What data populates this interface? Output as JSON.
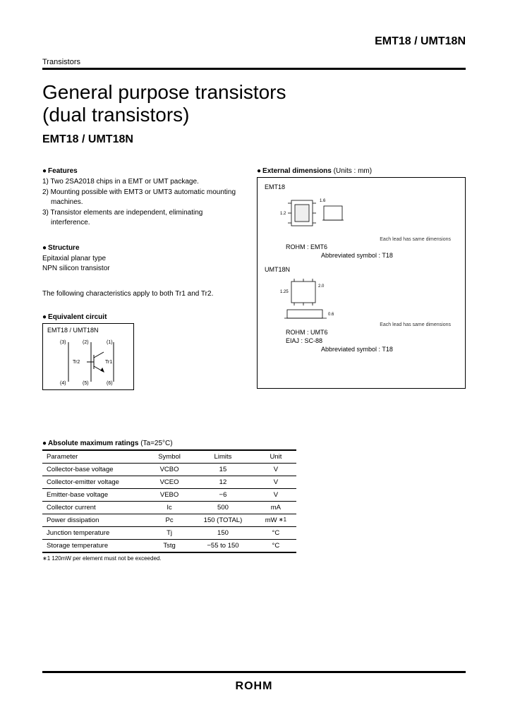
{
  "header": {
    "partno": "EMT18 / UMT18N",
    "category": "Transistors"
  },
  "title_l1": "General purpose transistors",
  "title_l2": "(dual transistors)",
  "subpart": "EMT18 / UMT18N",
  "features": {
    "heading": "Features",
    "items": [
      "1) Two 2SA2018 chips in a EMT or UMT package.",
      "2) Mounting possible with EMT3 or UMT3 automatic mounting machines.",
      "3) Transistor elements are independent, eliminating interference."
    ]
  },
  "structure": {
    "heading": "Structure",
    "l1": "Epitaxial planar type",
    "l2": "NPN silicon transistor"
  },
  "note": "The following characteristics apply to both Tr1 and Tr2.",
  "equiv": {
    "heading": "Equivalent circuit",
    "label": "EMT18 / UMT18N",
    "pins": {
      "top_l": "(3)",
      "top_m": "(2)",
      "top_r": "(1)",
      "bot_l": "(4)",
      "bot_m": "(5)",
      "bot_r": "(6)"
    },
    "tr1": "Tr1",
    "tr2": "Tr2"
  },
  "extdim": {
    "heading": "External dimensions",
    "units": "(Units : mm)",
    "pkg1": {
      "name": "EMT18",
      "rohm": "ROHM   : EMT6",
      "abbr": "Abbreviated symbol : T18",
      "note": "Each lead has same dimensions"
    },
    "pkg2": {
      "name": "UMT18N",
      "rohm": "ROHM   : UMT6",
      "eiaj": "EIAJ   : SC-88",
      "abbr": "Abbreviated symbol : T18",
      "note": "Each lead has same dimensions"
    }
  },
  "ratings": {
    "heading": "Absolute maximum ratings",
    "cond": "(Ta=25°C)",
    "cols": [
      "Parameter",
      "Symbol",
      "Limits",
      "Unit"
    ],
    "rows": [
      [
        "Collector-base voltage",
        "VCBO",
        "15",
        "V"
      ],
      [
        "Collector-emitter voltage",
        "VCEO",
        "12",
        "V"
      ],
      [
        "Emitter-base voltage",
        "VEBO",
        "−6",
        "V"
      ],
      [
        "Collector current",
        "Ic",
        "500",
        "mA"
      ],
      [
        "Power dissipation",
        "Pc",
        "150 (TOTAL)",
        "mW"
      ],
      [
        "Junction temperature",
        "Tj",
        "150",
        "°C"
      ],
      [
        "Storage temperature",
        "Tstg",
        "−55 to 150",
        "°C"
      ]
    ],
    "footref": "∗1",
    "footnote": "∗1 120mW per element must not be exceeded."
  },
  "logo": "ROHM"
}
